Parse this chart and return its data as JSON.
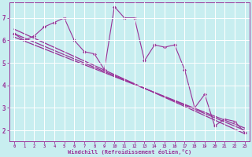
{
  "xlabel": "Windchill (Refroidissement éolien,°C)",
  "background_color": "#c8eef0",
  "line_color": "#993399",
  "grid_color": "#ffffff",
  "xlim": [
    -0.5,
    23.5
  ],
  "ylim": [
    1.5,
    7.7
  ],
  "xticks": [
    0,
    1,
    2,
    3,
    4,
    5,
    6,
    7,
    8,
    9,
    10,
    11,
    12,
    13,
    14,
    15,
    16,
    17,
    18,
    19,
    20,
    21,
    22,
    23
  ],
  "yticks": [
    2,
    3,
    4,
    5,
    6,
    7
  ],
  "line1_x": [
    0,
    1,
    2,
    3,
    4,
    5,
    6,
    7,
    8,
    9,
    10,
    11,
    12,
    13,
    14,
    15,
    16,
    17,
    18,
    19,
    20,
    21,
    22,
    23
  ],
  "line1_y": [
    6.3,
    6.0,
    6.2,
    6.6,
    6.8,
    7.0,
    6.0,
    5.5,
    5.4,
    4.7,
    7.5,
    7.0,
    7.0,
    5.1,
    5.8,
    5.7,
    5.8,
    4.7,
    3.0,
    3.6,
    2.2,
    2.5,
    2.4,
    1.9
  ],
  "trend1_x": [
    0,
    23
  ],
  "trend1_y": [
    6.5,
    1.85
  ],
  "trend2_x": [
    0,
    23
  ],
  "trend2_y": [
    6.3,
    2.0
  ],
  "trend3_x": [
    0,
    23
  ],
  "trend3_y": [
    6.15,
    2.1
  ]
}
